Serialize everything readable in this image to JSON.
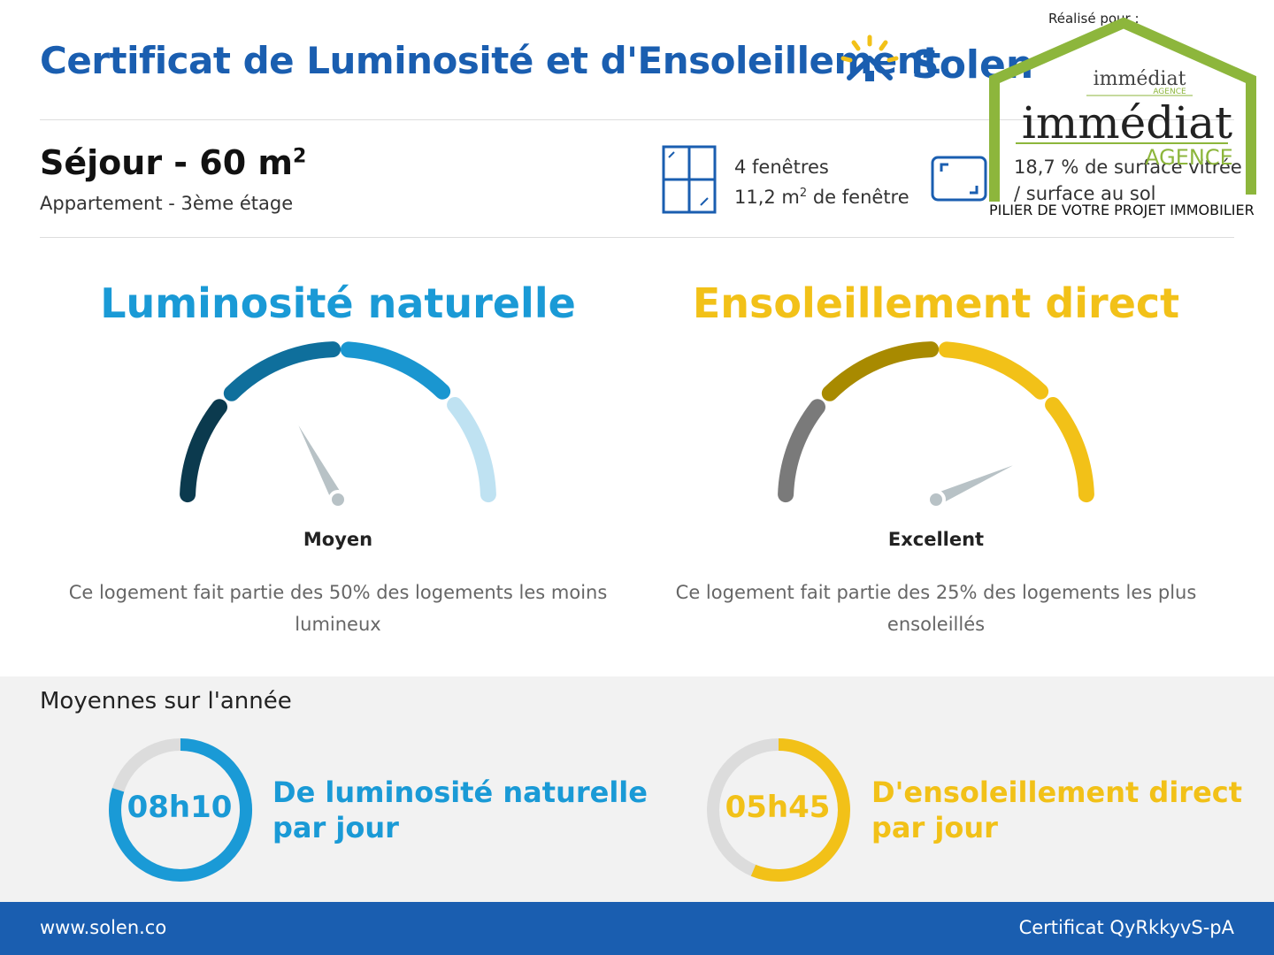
{
  "header": {
    "title": "Certificat de Luminosité et d'Ensoleillement",
    "brand_name": "Solen"
  },
  "room": {
    "name": "Séjour - 60 m",
    "exponent": "2",
    "subtitle": "Appartement - 3ème étage"
  },
  "windows": {
    "count_text": "4 fenêtres",
    "area_value": "11,2 m",
    "area_exponent": "2",
    "area_suffix": " de fenêtre"
  },
  "glazing": {
    "ratio_text": "18,7 % de surface vitrée",
    "floor_text": "/ surface au sol"
  },
  "agency": {
    "realise_pour": "Réalisé pour :",
    "small_name": "immédiat",
    "small_sub": "AGENCE",
    "big_name": "immédiat",
    "big_sub": "AGENCE",
    "tagline": "PILIER DE VOTRE PROJET IMMOBILIER",
    "color": "#8db63c"
  },
  "luminosite": {
    "title": "Luminosité naturelle",
    "rating": "Moyen",
    "description_line1": "Ce logement fait partie des 50% des logements les moins",
    "description_line2": "lumineux",
    "color": "#1a9ad6",
    "segment_colors": [
      "#0b3a4e",
      "#0f6f9c",
      "#1a96d0",
      "#bfe2f2"
    ]
  },
  "ensoleillement": {
    "title": "Ensoleillement direct",
    "rating": "Excellent",
    "description_line1": "Ce logement fait partie des 25% des logements les plus",
    "description_line2": "ensoleillés",
    "color": "#f2c118",
    "segment_colors": [
      "#7a7a7a",
      "#a88a00",
      "#f2c118",
      "#f2c118"
    ]
  },
  "yearly": {
    "title": "Moyennes sur l'année",
    "lum_value": "08h10",
    "lum_line1": "De luminosité naturelle",
    "lum_line2": "par jour",
    "sun_value": "05h45",
    "sun_line1": "D'ensoleillement direct",
    "sun_line2": "par jour"
  },
  "footer": {
    "website": "www.solen.co",
    "certificate": "Certificat QyRkkyvS-pA"
  },
  "colors": {
    "primary_blue": "#1a5eb0",
    "light_blue": "#1a9ad6",
    "yellow": "#f2c118",
    "needle": "#b8c2c6"
  }
}
